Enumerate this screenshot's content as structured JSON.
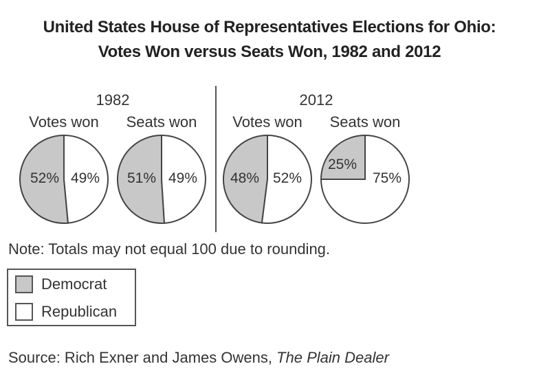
{
  "title": {
    "line1": "United States House of Representatives Elections for Ohio:",
    "line2": "Votes Won versus Seats Won, 1982 and 2012"
  },
  "chart_data": {
    "type": "pie",
    "groups": [
      {
        "year": "1982",
        "charts": [
          {
            "label": "Votes won",
            "slices": [
              {
                "name": "Democrat",
                "value": 52,
                "label": "52%"
              },
              {
                "name": "Republican",
                "value": 49,
                "label": "49%"
              }
            ]
          },
          {
            "label": "Seats won",
            "slices": [
              {
                "name": "Democrat",
                "value": 51,
                "label": "51%"
              },
              {
                "name": "Republican",
                "value": 49,
                "label": "49%"
              }
            ]
          }
        ]
      },
      {
        "year": "2012",
        "charts": [
          {
            "label": "Votes won",
            "slices": [
              {
                "name": "Democrat",
                "value": 48,
                "label": "48%"
              },
              {
                "name": "Republican",
                "value": 52,
                "label": "52%"
              }
            ]
          },
          {
            "label": "Seats won",
            "slices": [
              {
                "name": "Democrat",
                "value": 25,
                "label": "25%"
              },
              {
                "name": "Republican",
                "value": 75,
                "label": "75%"
              }
            ]
          }
        ]
      }
    ],
    "legend": {
      "placement": "bottom-left",
      "items": [
        {
          "name": "Democrat",
          "color": "#c8c8c8"
        },
        {
          "name": "Republican",
          "color": "#ffffff"
        }
      ]
    }
  },
  "note": "Note: Totals may not equal 100 due to rounding.",
  "source": {
    "prefix": "Source: Rich Exner and James Owens, ",
    "publication": "The Plain Dealer"
  }
}
